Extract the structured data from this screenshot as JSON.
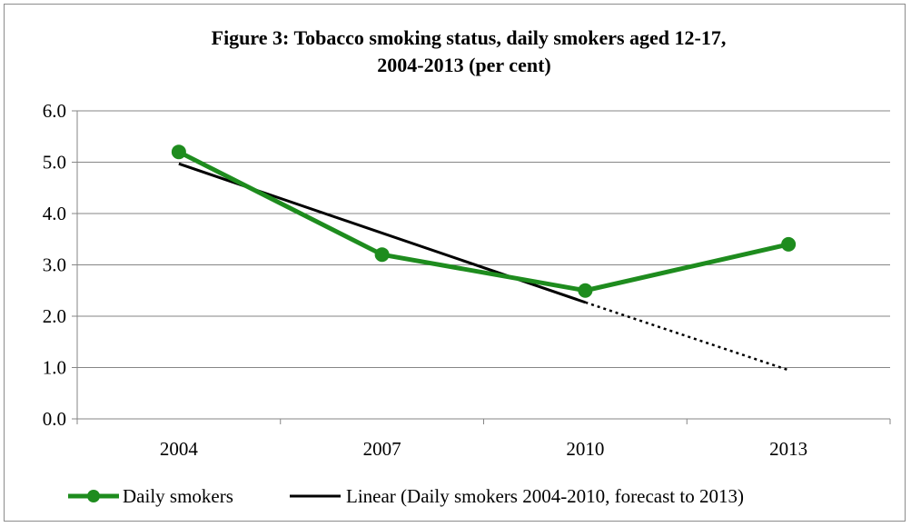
{
  "chart_data": {
    "type": "line",
    "title": "Figure 3: Tobacco smoking status, daily smokers aged 12-17,",
    "subtitle": "2004-2013 (per cent)",
    "categories": [
      "2004",
      "2007",
      "2010",
      "2013"
    ],
    "ylim": [
      0,
      6
    ],
    "yticks": [
      "0.0",
      "1.0",
      "2.0",
      "3.0",
      "4.0",
      "5.0",
      "6.0"
    ],
    "grid": true,
    "legend_position": "bottom",
    "series": [
      {
        "name": "Daily smokers",
        "values": [
          5.2,
          3.2,
          2.5,
          3.4
        ],
        "color": "#1e8c1e",
        "style": "line-with-markers"
      },
      {
        "name": "Linear (Daily smokers 2004-2010, forecast to 2013)",
        "trend_start": 4.97,
        "trend_end_2010": 2.27,
        "forecast_2013": 0.95,
        "color": "#000000",
        "style": "trendline-solid-then-dotted"
      }
    ]
  }
}
